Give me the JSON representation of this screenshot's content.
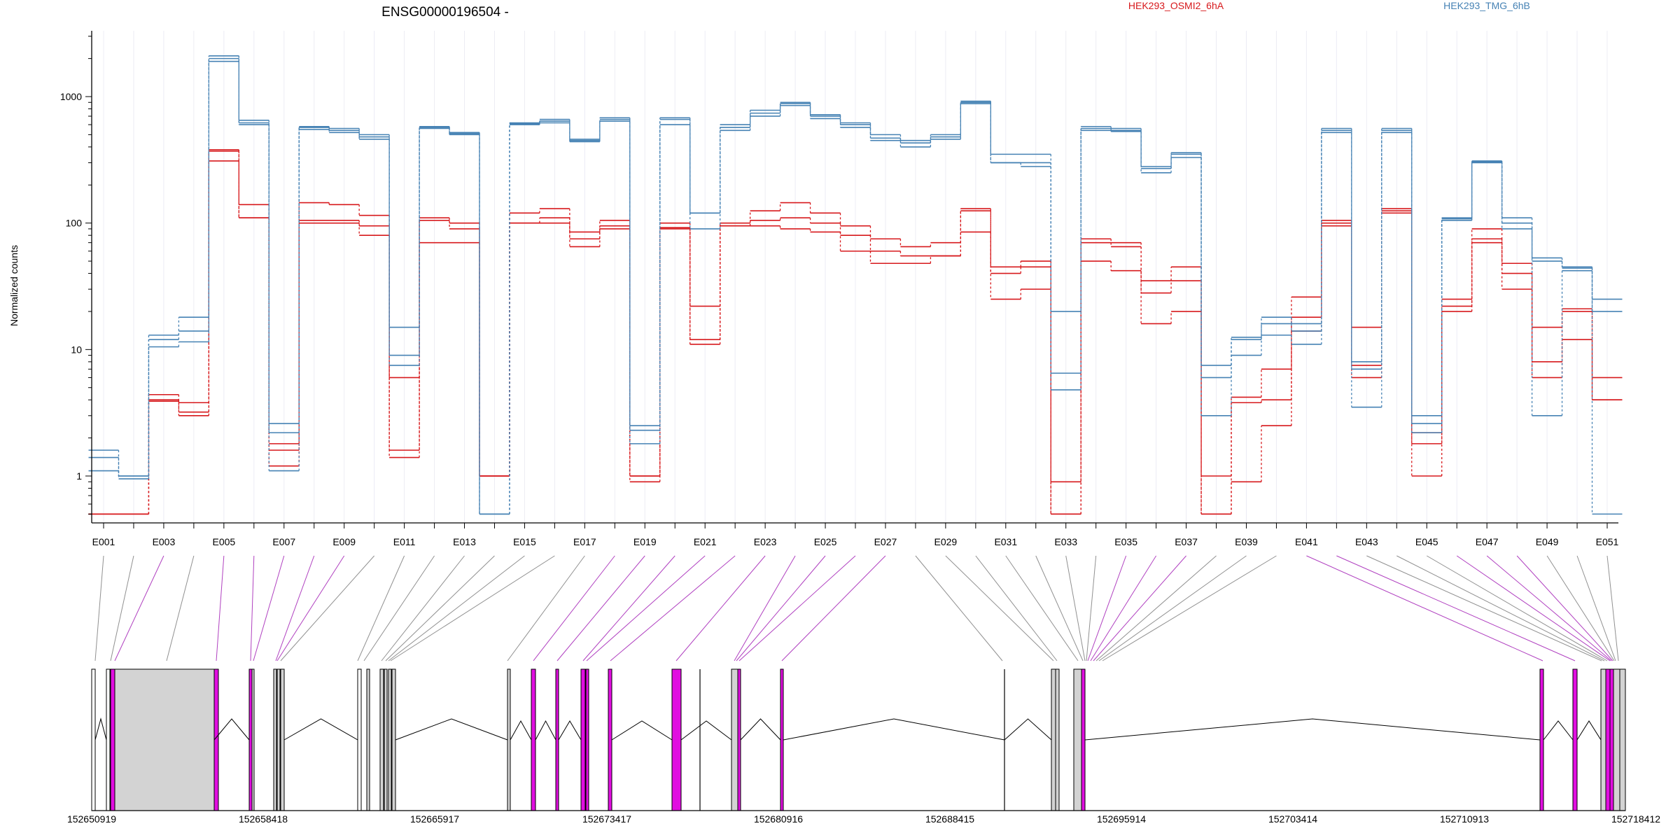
{
  "chart_data": {
    "type": "line",
    "title": "ENSG00000196504 -",
    "ylabel": "Normalized counts",
    "y_scale": "log",
    "ylim": [
      0.5,
      3000
    ],
    "y_ticks": [
      1,
      10,
      100,
      1000
    ],
    "y_tick_labels": [
      "1",
      "10",
      "100",
      "1000"
    ],
    "grid": "vertical lines at each exon",
    "legend_position": "top",
    "categories": [
      "E001",
      "E002",
      "E003",
      "E004",
      "E005",
      "E006",
      "E007",
      "E008",
      "E009",
      "E010",
      "E011",
      "E012",
      "E013",
      "E014",
      "E015",
      "E016",
      "E017",
      "E018",
      "E019",
      "E020",
      "E021",
      "E022",
      "E023",
      "E024",
      "E025",
      "E026",
      "E027",
      "E028",
      "E029",
      "E030",
      "E031",
      "E032",
      "E033",
      "E034",
      "E035",
      "E036",
      "E037",
      "E038",
      "E039",
      "E040",
      "E041",
      "E042",
      "E043",
      "E044",
      "E045",
      "E046",
      "E047",
      "E048",
      "E049",
      "E050",
      "E051"
    ],
    "x_tick_labels": [
      "E001",
      "E003",
      "E005",
      "E007",
      "E009",
      "E011",
      "E013",
      "E015",
      "E017",
      "E019",
      "E021",
      "E023",
      "E025",
      "E027",
      "E029",
      "E031",
      "E033",
      "E035",
      "E037",
      "E039",
      "E041",
      "E043",
      "E045",
      "E047",
      "E049",
      "E051"
    ],
    "series": [
      {
        "name": "HEK293_OSMI2_6hA",
        "color": "#d7191c",
        "group": "red",
        "values": [
          0.5,
          0.5,
          4.0,
          3.8,
          380,
          140,
          1.8,
          145,
          140,
          115,
          6,
          110,
          100,
          1,
          120,
          130,
          85,
          105,
          1,
          100,
          22,
          100,
          125,
          145,
          120,
          95,
          75,
          65,
          70,
          130,
          45,
          50,
          0.9,
          75,
          70,
          35,
          45,
          1,
          4.2,
          7,
          26,
          105,
          15,
          130,
          2.2,
          25,
          90,
          48,
          15,
          21,
          6
        ]
      },
      {
        "name": "",
        "color": "#d7191c",
        "group": "red",
        "values": [
          0.5,
          0.5,
          4.4,
          3.2,
          370,
          110,
          1.2,
          105,
          105,
          95,
          1.6,
          105,
          90,
          1,
          100,
          110,
          75,
          95,
          0.9,
          92,
          12,
          95,
          105,
          110,
          100,
          80,
          60,
          55,
          55,
          125,
          40,
          45,
          0.5,
          70,
          65,
          28,
          35,
          0.5,
          3.8,
          4,
          18,
          100,
          7.5,
          125,
          1.8,
          22,
          75,
          40,
          8,
          20,
          4
        ]
      },
      {
        "name": "",
        "color": "#d7191c",
        "group": "red",
        "values": [
          0.5,
          0.5,
          3.9,
          3.0,
          310,
          110,
          1.6,
          100,
          100,
          80,
          1.4,
          70,
          70,
          1,
          100,
          100,
          65,
          90,
          1,
          90,
          11,
          95,
          95,
          90,
          85,
          60,
          48,
          48,
          55,
          85,
          25,
          30,
          0.5,
          50,
          42,
          16,
          20,
          0.5,
          0.9,
          2.5,
          14,
          95,
          6,
          120,
          1,
          20,
          70,
          30,
          6,
          12,
          4
        ]
      },
      {
        "name": "",
        "color": "#4682b4",
        "group": "blue",
        "values": [
          1.6,
          1.0,
          13,
          18,
          2100,
          650,
          2.6,
          580,
          560,
          500,
          15,
          580,
          520,
          0.5,
          620,
          660,
          460,
          680,
          2.5,
          680,
          120,
          600,
          780,
          900,
          720,
          620,
          500,
          450,
          500,
          920,
          350,
          350,
          20,
          580,
          560,
          280,
          360,
          7.5,
          12.5,
          18,
          16,
          560,
          8,
          560,
          3,
          110,
          310,
          110,
          53,
          45,
          25
        ]
      },
      {
        "name": "HEK293_TMG_6hB",
        "color": "#4682b4",
        "group": "blue",
        "values": [
          1.4,
          1.0,
          12,
          14,
          2000,
          620,
          2.2,
          570,
          540,
          480,
          9,
          570,
          510,
          0.5,
          610,
          640,
          450,
          660,
          2.3,
          660,
          120,
          570,
          740,
          880,
          700,
          600,
          470,
          430,
          480,
          900,
          300,
          300,
          6.5,
          560,
          540,
          270,
          350,
          6,
          12,
          16,
          14,
          540,
          7,
          540,
          2.6,
          108,
          305,
          100,
          50,
          44,
          20
        ]
      },
      {
        "name": "",
        "color": "#4682b4",
        "group": "blue",
        "values": [
          1.1,
          0.95,
          10.5,
          11.5,
          1900,
          600,
          1.1,
          550,
          520,
          460,
          7.5,
          560,
          500,
          0.5,
          600,
          620,
          440,
          640,
          1.8,
          600,
          90,
          540,
          700,
          850,
          670,
          570,
          450,
          400,
          460,
          880,
          300,
          280,
          4.8,
          540,
          530,
          250,
          330,
          3,
          9,
          13,
          11,
          520,
          3.5,
          520,
          2.2,
          105,
          300,
          90,
          3,
          42,
          0.5
        ]
      }
    ],
    "gene_model": {
      "coord_labels": [
        "152650919",
        "152658418",
        "152665917",
        "152673417",
        "152680916",
        "152688415",
        "152695914",
        "152703414",
        "152710913",
        "152718412"
      ],
      "exon_fill_colors": {
        "not_significant": "#d3d3d3",
        "significant": "#e10ee0",
        "other": "#ffffff"
      }
    }
  },
  "legend": {
    "group1": "HEK293_OSMI2_6hA",
    "group2": "HEK293_TMG_6hB"
  },
  "colors": {
    "group1": "#d7191c",
    "group2": "#4682b4",
    "significant": "#e10ee0",
    "not_significant": "#d3d3d3"
  }
}
